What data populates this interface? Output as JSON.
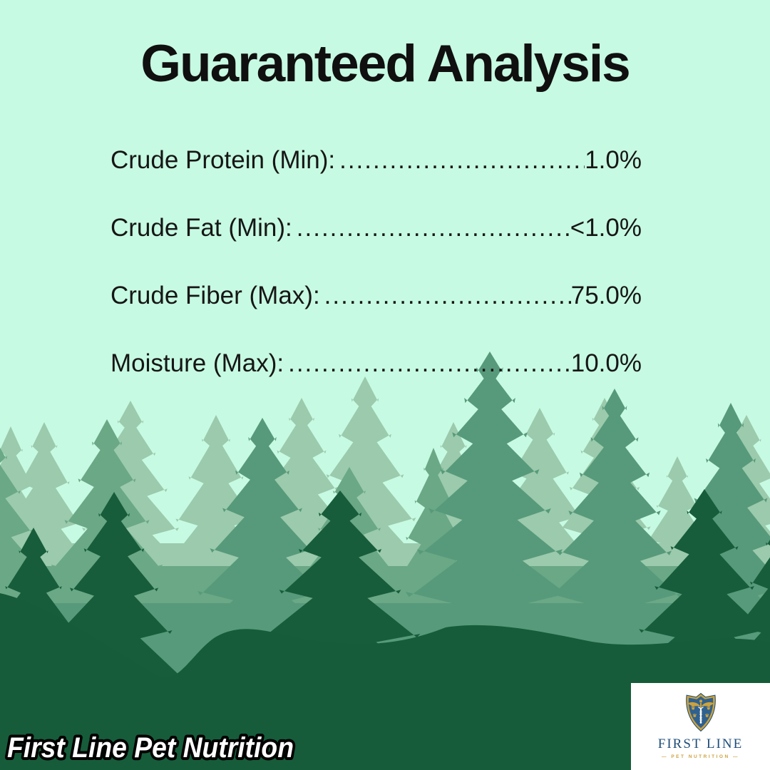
{
  "palette": {
    "sky": "#c7fae2",
    "tree_light": "#9bcaac",
    "tree_mid_back": "#6aa886",
    "tree_mid_front": "#579a7b",
    "tree_dark": "#175d3b",
    "ground": "#165c3a",
    "ink": "#101010",
    "navy": "#1f4e79",
    "gold": "#cda23d",
    "shield_blue": "#2f6190",
    "watermark_fill": "#ffffff",
    "watermark_outline": "#000000"
  },
  "title": "Guaranteed Analysis",
  "analysis": {
    "rows": [
      {
        "label": "Crude Protein (Min):",
        "leader": "................................................",
        "value": "1.0%"
      },
      {
        "label": "Crude Fat (Min):",
        "leader": "................................................",
        "value": "<1.0%"
      },
      {
        "label": "Crude Fiber (Max):",
        "leader": "................................................",
        "value": "75.0%"
      },
      {
        "label": "Moisture (Max):",
        "leader": "................................................",
        "value": "10.0%"
      }
    ]
  },
  "watermark": "First Line Pet Nutrition",
  "logo": {
    "name": "FIRST LINE",
    "tagline": "PET NUTRITION",
    "tagline_display": "—   PET NUTRITION   —"
  }
}
